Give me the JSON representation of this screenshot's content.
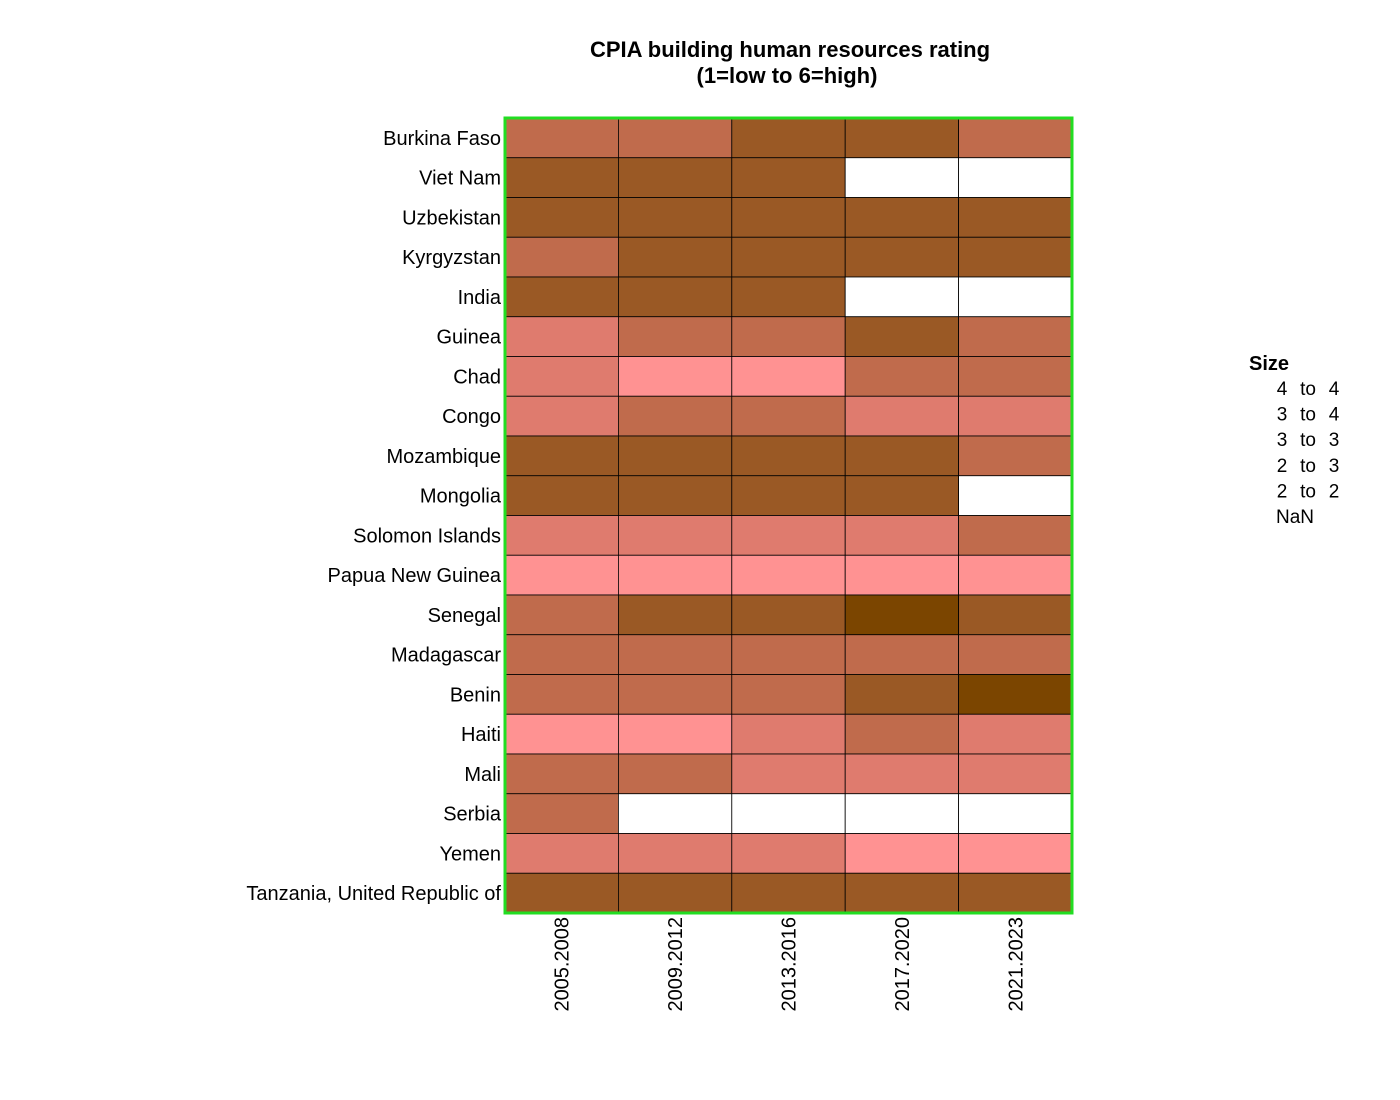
{
  "chart_data": {
    "type": "heatmap",
    "title": "CPIA building human resources rating",
    "subtitle": "(1=low to 6=high)",
    "rows": [
      "Burkina Faso",
      "Viet Nam",
      "Uzbekistan",
      "Kyrgyzstan",
      "India",
      "Guinea",
      "Chad",
      "Congo",
      "Mozambique",
      "Mongolia",
      "Solomon Islands",
      "Papua New Guinea",
      "Senegal",
      "Madagascar",
      "Benin",
      "Haiti",
      "Mali",
      "Serbia",
      "Yemen",
      "Tanzania, United Republic of"
    ],
    "columns": [
      "2005.2008",
      "2009.2012",
      "2013.2016",
      "2017.2020",
      "2021.2023"
    ],
    "values": [
      [
        3.5,
        3.5,
        4.0,
        4.0,
        3.5
      ],
      [
        4.0,
        4.0,
        4.0,
        null,
        null
      ],
      [
        4.0,
        4.0,
        4.0,
        4.0,
        4.0
      ],
      [
        3.5,
        4.0,
        4.0,
        4.0,
        4.0
      ],
      [
        4.0,
        4.0,
        4.0,
        null,
        null
      ],
      [
        3.0,
        3.5,
        3.5,
        4.0,
        3.5
      ],
      [
        3.0,
        2.5,
        2.5,
        3.5,
        3.5
      ],
      [
        3.0,
        3.5,
        3.5,
        3.0,
        3.0
      ],
      [
        4.0,
        4.0,
        4.0,
        4.0,
        3.5
      ],
      [
        4.0,
        4.0,
        4.0,
        4.0,
        null
      ],
      [
        3.0,
        3.0,
        3.0,
        3.0,
        3.5
      ],
      [
        2.5,
        2.5,
        2.5,
        2.5,
        2.5
      ],
      [
        3.5,
        4.0,
        4.0,
        4.5,
        4.0
      ],
      [
        3.5,
        3.5,
        3.5,
        3.5,
        3.5
      ],
      [
        3.5,
        3.5,
        3.5,
        4.0,
        4.5
      ],
      [
        2.5,
        2.5,
        3.0,
        3.5,
        3.0
      ],
      [
        3.5,
        3.5,
        3.0,
        3.0,
        3.0
      ],
      [
        3.5,
        null,
        null,
        null,
        null
      ],
      [
        3.0,
        3.0,
        3.0,
        2.5,
        2.5
      ],
      [
        4.0,
        4.0,
        4.0,
        4.0,
        4.0
      ]
    ],
    "color_scale": [
      {
        "min": 4.5,
        "color": "#7b4500"
      },
      {
        "min": 4.0,
        "color": "#9a5925"
      },
      {
        "min": 3.5,
        "color": "#c06b4c"
      },
      {
        "min": 3.0,
        "color": "#df7b6e"
      },
      {
        "min": 2.5,
        "color": "#ff9292"
      }
    ],
    "nan_color": "#ffffff",
    "border_color": "#22dd22",
    "cell_line_color": "#000000",
    "legend": {
      "title": "Size",
      "placement": "right",
      "entries": [
        {
          "from": "4",
          "to": "4"
        },
        {
          "from": "3",
          "to": "4"
        },
        {
          "from": "3",
          "to": "3"
        },
        {
          "from": "2",
          "to": "3"
        },
        {
          "from": "2",
          "to": "2"
        }
      ],
      "to_word": "to",
      "nan_label": "NaN"
    }
  }
}
